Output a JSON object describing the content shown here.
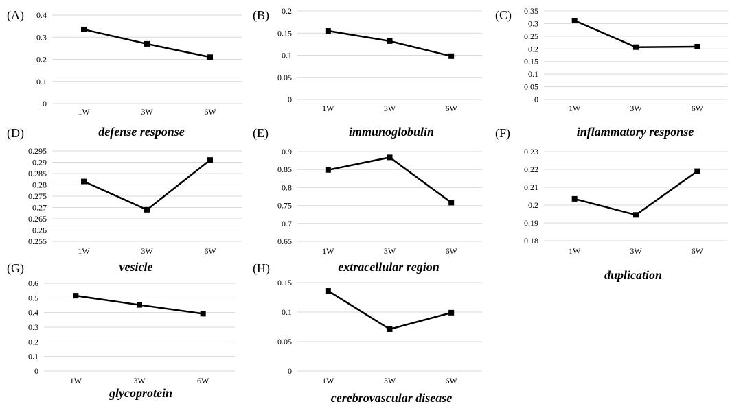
{
  "chart_data": [
    {
      "panel": "(A)",
      "type": "line",
      "title": "defense response",
      "categories": [
        "1W",
        "3W",
        "6W"
      ],
      "values": [
        0.335,
        0.27,
        0.21
      ],
      "ylim": [
        0,
        0.4
      ],
      "yticks": [
        "0",
        "0.1",
        "0.2",
        "0.3",
        "0.4"
      ],
      "grid": true,
      "marker": "square"
    },
    {
      "panel": "(B)",
      "type": "line",
      "title": "immunoglobulin",
      "categories": [
        "1W",
        "3W",
        "6W"
      ],
      "values": [
        0.155,
        0.132,
        0.098
      ],
      "ylim": [
        0,
        0.2
      ],
      "yticks": [
        "0",
        "0.05",
        "0.1",
        "0.15",
        "0.2"
      ],
      "grid": true,
      "marker": "square"
    },
    {
      "panel": "(C)",
      "type": "line",
      "title": "inflammatory response",
      "categories": [
        "1W",
        "3W",
        "6W"
      ],
      "values": [
        0.312,
        0.207,
        0.209
      ],
      "ylim": [
        0,
        0.35
      ],
      "yticks": [
        "0",
        "0.05",
        "0.1",
        "0.15",
        "0.2",
        "0.25",
        "0.3",
        "0.35"
      ],
      "grid": true,
      "marker": "square"
    },
    {
      "panel": "(D)",
      "type": "line",
      "title": "vesicle",
      "categories": [
        "1W",
        "3W",
        "6W"
      ],
      "values": [
        0.2815,
        0.269,
        0.291
      ],
      "ylim": [
        0.255,
        0.295
      ],
      "yticks": [
        "0.255",
        "0.26",
        "0.265",
        "0.27",
        "0.275",
        "0.28",
        "0.285",
        "0.29",
        "0.295"
      ],
      "grid": true,
      "marker": "square"
    },
    {
      "panel": "(E)",
      "type": "line",
      "title": "extracellular region",
      "categories": [
        "1W",
        "3W",
        "6W"
      ],
      "values": [
        0.849,
        0.884,
        0.758
      ],
      "ylim": [
        0.65,
        0.9
      ],
      "yticks": [
        "0.65",
        "0.7",
        "0.75",
        "0.8",
        "0.85",
        "0.9"
      ],
      "grid": true,
      "marker": "square"
    },
    {
      "panel": "(F)",
      "type": "line",
      "title": "duplication",
      "categories": [
        "1W",
        "3W",
        "6W"
      ],
      "values": [
        0.2035,
        0.1945,
        0.219
      ],
      "ylim": [
        0.18,
        0.23
      ],
      "yticks": [
        "0.18",
        "0.19",
        "0.2",
        "0.21",
        "0.22",
        "0.23"
      ],
      "grid": true,
      "marker": "square"
    },
    {
      "panel": "(G)",
      "type": "line",
      "title": "glycoprotein",
      "categories": [
        "1W",
        "3W",
        "6W"
      ],
      "values": [
        0.515,
        0.452,
        0.392
      ],
      "ylim": [
        0,
        0.6
      ],
      "yticks": [
        "0",
        "0.1",
        "0.2",
        "0.3",
        "0.4",
        "0.5",
        "0.6"
      ],
      "grid": true,
      "marker": "square"
    },
    {
      "panel": "(H)",
      "type": "line",
      "title": "cerebrovascular disease",
      "categories": [
        "1W",
        "3W",
        "6W"
      ],
      "values": [
        0.136,
        0.071,
        0.099
      ],
      "ylim": [
        0,
        0.15
      ],
      "yticks": [
        "0",
        "0.05",
        "0.1",
        "0.15"
      ],
      "grid": true,
      "marker": "square"
    }
  ]
}
